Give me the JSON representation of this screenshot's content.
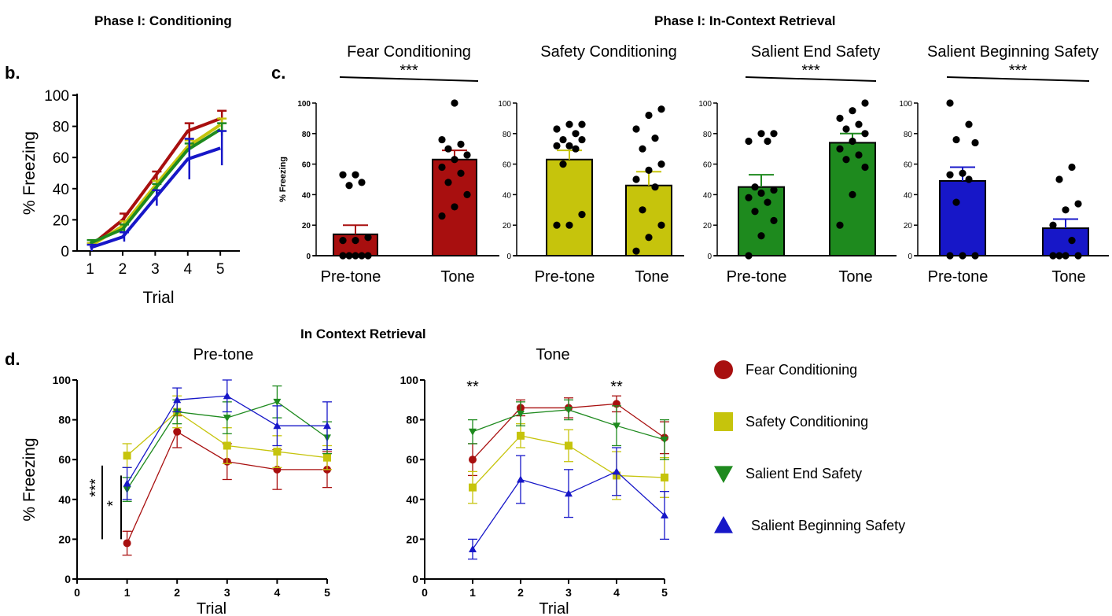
{
  "headers": {
    "phase_conditioning": "Phase I: Conditioning",
    "phase_retrieval": "Phase I: In-Context Retrieval",
    "in_context": "In Context Retrieval"
  },
  "panel_letters": {
    "b": "b.",
    "c": "c.",
    "d": "d."
  },
  "colors": {
    "fear": "#a80f0f",
    "safety": "#c6c40c",
    "end": "#1e8a1e",
    "beginning": "#1717c8",
    "dot": "#000000"
  },
  "chart_data": [
    {
      "id": "b",
      "type": "line",
      "xlabel": "Trial",
      "ylabel": "% Freezing",
      "x": [
        1,
        2,
        3,
        4,
        5
      ],
      "xlim": [
        0.6,
        5.6
      ],
      "ylim": [
        0,
        100
      ],
      "yticks": [
        0,
        20,
        40,
        60,
        80,
        100
      ],
      "series": [
        {
          "key": "fear",
          "values": [
            3,
            20,
            48,
            77,
            85
          ],
          "err": [
            2,
            4,
            3,
            5,
            5
          ]
        },
        {
          "key": "safety",
          "values": [
            3,
            16,
            42,
            67,
            81
          ],
          "err": [
            2,
            3,
            3,
            4,
            4
          ]
        },
        {
          "key": "end",
          "values": [
            5,
            14,
            40,
            65,
            78
          ],
          "err": [
            2,
            3,
            3,
            4,
            4
          ]
        },
        {
          "key": "beginning",
          "values": [
            2,
            9,
            34,
            59,
            66
          ],
          "err": [
            2,
            3,
            5,
            13,
            11
          ]
        }
      ]
    },
    {
      "id": "c1",
      "type": "bar",
      "title": "Fear Conditioning",
      "ylabel": "% Freezing",
      "categories": [
        "Pre-tone",
        "Tone"
      ],
      "values": [
        14,
        63
      ],
      "err": [
        6,
        6
      ],
      "ylim": [
        0,
        100
      ],
      "yticks": [
        0,
        20,
        40,
        60,
        80,
        100
      ],
      "significance": "***",
      "color_key": "fear",
      "points": [
        [
          0,
          0,
          0,
          0,
          0,
          10,
          10,
          12,
          46,
          48,
          53,
          53
        ],
        [
          26,
          32,
          40,
          48,
          54,
          58,
          63,
          66,
          70,
          73,
          76,
          100
        ]
      ]
    },
    {
      "id": "c2",
      "type": "bar",
      "title": "Safety Conditioning",
      "ylabel": "",
      "categories": [
        "Pre-tone",
        "Tone"
      ],
      "values": [
        63,
        46
      ],
      "err": [
        6,
        9
      ],
      "ylim": [
        0,
        100
      ],
      "yticks": [
        0,
        20,
        40,
        60,
        80,
        100
      ],
      "significance": "",
      "color_key": "safety",
      "points": [
        [
          20,
          20,
          27,
          60,
          70,
          72,
          72,
          76,
          76,
          80,
          83,
          86,
          86
        ],
        [
          3,
          12,
          20,
          30,
          45,
          50,
          56,
          60,
          70,
          77,
          83,
          92,
          96
        ]
      ]
    },
    {
      "id": "c3",
      "type": "bar",
      "title": "Salient End Safety",
      "ylabel": "",
      "categories": [
        "Pre-tone",
        "Tone"
      ],
      "values": [
        45,
        74
      ],
      "err": [
        8,
        6
      ],
      "ylim": [
        0,
        100
      ],
      "yticks": [
        0,
        20,
        40,
        60,
        80,
        100
      ],
      "significance": "***",
      "color_key": "end",
      "points": [
        [
          0,
          13,
          23,
          29,
          35,
          38,
          41,
          43,
          45,
          75,
          75,
          80,
          80
        ],
        [
          20,
          40,
          58,
          63,
          66,
          70,
          75,
          80,
          83,
          86,
          90,
          95,
          100
        ]
      ]
    },
    {
      "id": "c4",
      "type": "bar",
      "title": "Salient Beginning Safety",
      "ylabel": "",
      "categories": [
        "Pre-tone",
        "Tone"
      ],
      "values": [
        49,
        18
      ],
      "err": [
        9,
        6
      ],
      "ylim": [
        0,
        100
      ],
      "yticks": [
        0,
        20,
        40,
        60,
        80,
        100
      ],
      "significance": "***",
      "color_key": "beginning",
      "points": [
        [
          0,
          0,
          0,
          35,
          50,
          53,
          54,
          74,
          76,
          86,
          100
        ],
        [
          0,
          0,
          0,
          0,
          10,
          20,
          30,
          34,
          50,
          58
        ]
      ]
    },
    {
      "id": "d1",
      "type": "line",
      "title": "Pre-tone",
      "xlabel": "Trial",
      "ylabel": "% Freezing",
      "x": [
        1,
        2,
        3,
        4,
        5
      ],
      "xlim": [
        0,
        5
      ],
      "xticks": [
        0,
        1,
        2,
        3,
        4,
        5
      ],
      "ylim": [
        0,
        100
      ],
      "yticks": [
        0,
        20,
        40,
        60,
        80,
        100
      ],
      "annotations": [
        {
          "label": "***",
          "from": 20,
          "to": 57
        },
        {
          "label": "*",
          "from": 20,
          "to": 52
        }
      ],
      "series": [
        {
          "key": "fear",
          "marker": "circle",
          "values": [
            18,
            74,
            59,
            55,
            55
          ],
          "err": [
            6,
            8,
            9,
            10,
            9
          ]
        },
        {
          "key": "safety",
          "marker": "square",
          "values": [
            62,
            84,
            67,
            64,
            61
          ],
          "err": [
            6,
            8,
            9,
            8,
            6
          ]
        },
        {
          "key": "end",
          "marker": "tri-down",
          "values": [
            45,
            84,
            81,
            89,
            71
          ],
          "err": [
            6,
            6,
            8,
            8,
            8
          ]
        },
        {
          "key": "beginning",
          "marker": "tri-up",
          "values": [
            48,
            90,
            92,
            77,
            77
          ],
          "err": [
            8,
            6,
            8,
            10,
            12
          ]
        }
      ]
    },
    {
      "id": "d2",
      "type": "line",
      "title": "Tone",
      "xlabel": "Trial",
      "ylabel": "",
      "x": [
        1,
        2,
        3,
        4,
        5
      ],
      "xlim": [
        0,
        5
      ],
      "xticks": [
        0,
        1,
        2,
        3,
        4,
        5
      ],
      "ylim": [
        0,
        100
      ],
      "yticks": [
        0,
        20,
        40,
        60,
        80,
        100
      ],
      "annotations": [
        {
          "label": "**",
          "x": 1
        },
        {
          "label": "**",
          "x": 4
        }
      ],
      "series": [
        {
          "key": "fear",
          "marker": "circle",
          "values": [
            60,
            86,
            86,
            88,
            71
          ],
          "err": [
            8,
            4,
            5,
            4,
            8
          ]
        },
        {
          "key": "safety",
          "marker": "square",
          "values": [
            46,
            72,
            67,
            52,
            51
          ],
          "err": [
            8,
            6,
            8,
            12,
            10
          ]
        },
        {
          "key": "end",
          "marker": "tri-down",
          "values": [
            74,
            83,
            85,
            77,
            70
          ],
          "err": [
            6,
            6,
            5,
            10,
            10
          ]
        },
        {
          "key": "beginning",
          "marker": "tri-up",
          "values": [
            15,
            50,
            43,
            54,
            32
          ],
          "err": [
            5,
            12,
            12,
            12,
            12
          ]
        }
      ]
    }
  ],
  "legend": [
    {
      "key": "fear",
      "marker": "circle",
      "label": "Fear Conditioning"
    },
    {
      "key": "safety",
      "marker": "square",
      "label": "Safety Conditioning"
    },
    {
      "key": "end",
      "marker": "tri-down",
      "label": "Salient End Safety"
    },
    {
      "key": "beginning",
      "marker": "tri-up",
      "label": "Salient Beginning Safety"
    }
  ]
}
